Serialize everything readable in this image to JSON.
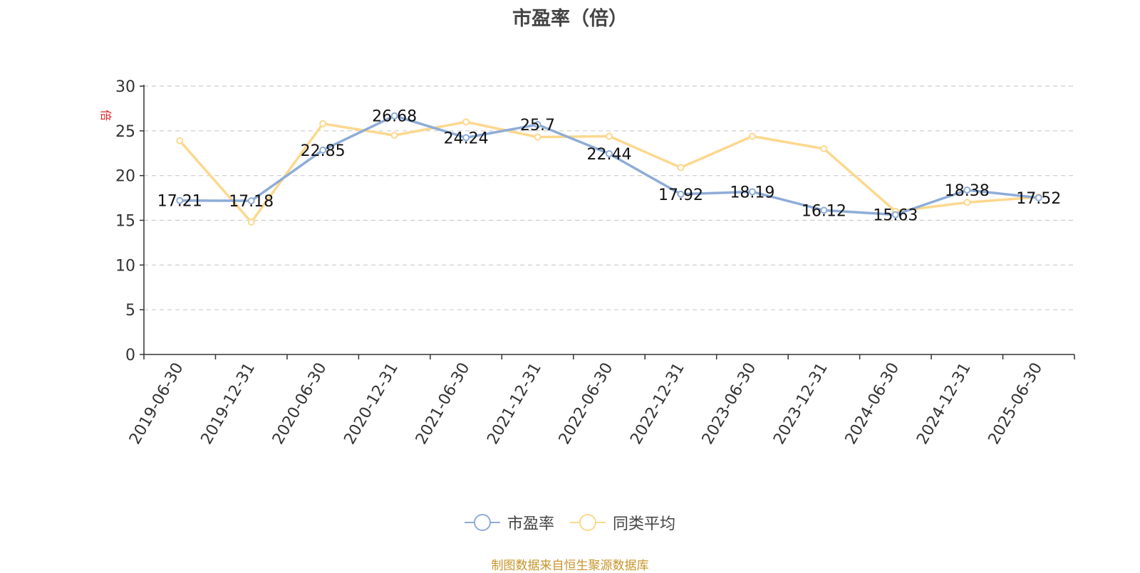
{
  "chart_data": {
    "type": "line",
    "title": "市盈率（倍）",
    "ylabel": "倍",
    "ylim": [
      0,
      30
    ],
    "yticks": [
      0,
      5,
      10,
      15,
      20,
      25,
      30
    ],
    "grid": true,
    "legend_position": "bottom",
    "categories": [
      "2019-06-30",
      "2019-12-31",
      "2020-06-30",
      "2020-12-31",
      "2021-06-30",
      "2021-12-31",
      "2022-06-30",
      "2022-12-31",
      "2023-06-30",
      "2023-12-31",
      "2024-06-30",
      "2024-12-31",
      "2025-06-30"
    ],
    "series": [
      {
        "name": "市盈率",
        "color": "#8eacd8",
        "values": [
          17.21,
          17.18,
          22.85,
          26.68,
          24.24,
          25.7,
          22.44,
          17.92,
          18.19,
          16.12,
          15.63,
          18.38,
          17.52
        ],
        "labels": [
          "17.21",
          "17.18",
          "22.85",
          "26.68",
          "24.24",
          "25.7",
          "22.44",
          "17.92",
          "18.19",
          "16.12",
          "15.63",
          "18.38",
          "17.52"
        ]
      },
      {
        "name": "同类平均",
        "color": "#fcd88e",
        "values": [
          23.9,
          14.8,
          25.8,
          24.5,
          26.0,
          24.3,
          24.4,
          20.9,
          24.4,
          23.0,
          16.0,
          17.0,
          17.6
        ]
      }
    ]
  },
  "source_text": "制图数据来自恒生聚源数据库"
}
